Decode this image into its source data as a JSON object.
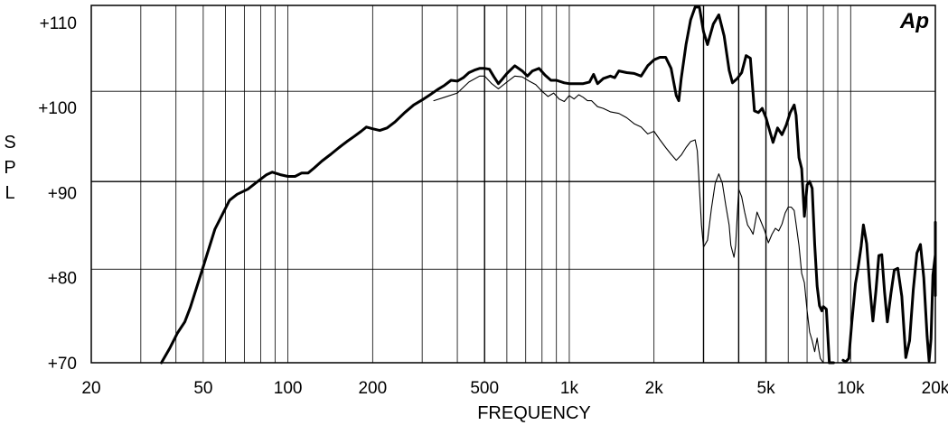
{
  "chart_data": {
    "type": "line",
    "title": "",
    "xlabel": "FREQUENCY",
    "ylabel": "S P L",
    "x_scale": "log",
    "xlim": [
      20,
      20000
    ],
    "ylim": [
      70,
      112
    ],
    "grid": true,
    "logo": "Ap",
    "x_ticks": [
      {
        "value": 20,
        "label": "20"
      },
      {
        "value": 50,
        "label": "50"
      },
      {
        "value": 100,
        "label": "100"
      },
      {
        "value": 200,
        "label": "200"
      },
      {
        "value": 500,
        "label": "500"
      },
      {
        "value": 1000,
        "label": "1k"
      },
      {
        "value": 2000,
        "label": "2k"
      },
      {
        "value": 5000,
        "label": "5k"
      },
      {
        "value": 10000,
        "label": "10k"
      },
      {
        "value": 20000,
        "label": "20k"
      }
    ],
    "y_ticks": [
      {
        "value": 70,
        "label": "+70"
      },
      {
        "value": 80,
        "label": "+80"
      },
      {
        "value": 90,
        "label": "+90"
      },
      {
        "value": 100,
        "label": "+100"
      },
      {
        "value": 110,
        "label": "+110"
      }
    ],
    "h_lines": [
      81,
      91.3,
      101.9
    ],
    "bold_v_lines": [
      500,
      3000,
      4000,
      5000
    ],
    "series": [
      {
        "style": "thick",
        "points": [
          [
            35.5,
            70
          ],
          [
            38,
            71.7
          ],
          [
            40.5,
            73.5
          ],
          [
            43,
            74.8
          ],
          [
            45,
            76.5
          ],
          [
            50,
            81.3
          ],
          [
            55,
            85.7
          ],
          [
            58,
            87.2
          ],
          [
            62,
            89.1
          ],
          [
            66,
            89.8
          ],
          [
            72,
            90.4
          ],
          [
            78,
            91.3
          ],
          [
            84,
            92.1
          ],
          [
            88,
            92.4
          ],
          [
            94,
            92.1
          ],
          [
            100,
            91.9
          ],
          [
            106,
            91.9
          ],
          [
            112,
            92.3
          ],
          [
            118,
            92.3
          ],
          [
            124,
            92.9
          ],
          [
            132,
            93.7
          ],
          [
            142,
            94.5
          ],
          [
            152,
            95.3
          ],
          [
            162,
            96
          ],
          [
            172,
            96.6
          ],
          [
            182,
            97.2
          ],
          [
            190,
            97.7
          ],
          [
            200,
            97.5
          ],
          [
            212,
            97.3
          ],
          [
            225,
            97.6
          ],
          [
            240,
            98.3
          ],
          [
            260,
            99.4
          ],
          [
            280,
            100.3
          ],
          [
            300,
            100.9
          ],
          [
            320,
            101.5
          ],
          [
            340,
            102.1
          ],
          [
            360,
            102.6
          ],
          [
            380,
            103.2
          ],
          [
            400,
            103.1
          ],
          [
            420,
            103.5
          ],
          [
            440,
            104.1
          ],
          [
            460,
            104.4
          ],
          [
            480,
            104.6
          ],
          [
            500,
            104.6
          ],
          [
            520,
            104.5
          ],
          [
            540,
            103.6
          ],
          [
            560,
            102.8
          ],
          [
            580,
            103.4
          ],
          [
            600,
            104
          ],
          [
            640,
            104.9
          ],
          [
            680,
            104.3
          ],
          [
            710,
            103.7
          ],
          [
            740,
            104.3
          ],
          [
            780,
            104.6
          ],
          [
            820,
            103.8
          ],
          [
            860,
            103.2
          ],
          [
            900,
            103.2
          ],
          [
            960,
            102.9
          ],
          [
            1000,
            102.8
          ],
          [
            1060,
            102.8
          ],
          [
            1120,
            102.8
          ],
          [
            1180,
            103
          ],
          [
            1220,
            103.9
          ],
          [
            1260,
            102.8
          ],
          [
            1320,
            103.4
          ],
          [
            1400,
            103.7
          ],
          [
            1450,
            103.5
          ],
          [
            1500,
            104.3
          ],
          [
            1600,
            104.1
          ],
          [
            1700,
            104
          ],
          [
            1800,
            103.7
          ],
          [
            1900,
            104.9
          ],
          [
            2000,
            105.6
          ],
          [
            2100,
            105.9
          ],
          [
            2200,
            105.9
          ],
          [
            2300,
            104.6
          ],
          [
            2400,
            101.4
          ],
          [
            2450,
            100.8
          ],
          [
            2500,
            103.4
          ],
          [
            2600,
            107.4
          ],
          [
            2700,
            110.3
          ],
          [
            2800,
            111.8
          ],
          [
            2900,
            111.8
          ],
          [
            3000,
            108.9
          ],
          [
            3100,
            107.4
          ],
          [
            3250,
            109.8
          ],
          [
            3400,
            110.9
          ],
          [
            3550,
            108.4
          ],
          [
            3700,
            104.4
          ],
          [
            3800,
            102.9
          ],
          [
            3950,
            103.4
          ],
          [
            4100,
            104.1
          ],
          [
            4250,
            106.1
          ],
          [
            4400,
            105.8
          ],
          [
            4550,
            99.6
          ],
          [
            4700,
            99.4
          ],
          [
            4850,
            99.9
          ],
          [
            5000,
            98.8
          ],
          [
            5150,
            97.3
          ],
          [
            5300,
            95.9
          ],
          [
            5500,
            97.6
          ],
          [
            5700,
            96.8
          ],
          [
            5900,
            97.9
          ],
          [
            6100,
            99.4
          ],
          [
            6300,
            100.3
          ],
          [
            6400,
            99.1
          ],
          [
            6550,
            94.1
          ],
          [
            6700,
            92.8
          ],
          [
            6850,
            87.2
          ],
          [
            7000,
            90.9
          ],
          [
            7150,
            91.3
          ],
          [
            7300,
            90.5
          ],
          [
            7450,
            83.9
          ],
          [
            7600,
            79
          ],
          [
            7750,
            76.7
          ],
          [
            7900,
            76.1
          ],
          [
            8000,
            76.6
          ],
          [
            8200,
            76.3
          ],
          [
            8400,
            70
          ],
          [
            8700,
            69.5
          ]
        ]
      },
      {
        "style": "thin",
        "points": [
          [
            330,
            100.8
          ],
          [
            360,
            101.2
          ],
          [
            400,
            101.7
          ],
          [
            440,
            103
          ],
          [
            480,
            103.7
          ],
          [
            500,
            103.7
          ],
          [
            530,
            102.8
          ],
          [
            560,
            102.2
          ],
          [
            600,
            103
          ],
          [
            640,
            103.7
          ],
          [
            680,
            103.6
          ],
          [
            720,
            103.1
          ],
          [
            760,
            102.7
          ],
          [
            800,
            101.9
          ],
          [
            840,
            101.3
          ],
          [
            880,
            101.7
          ],
          [
            920,
            101
          ],
          [
            960,
            100.7
          ],
          [
            1000,
            101.4
          ],
          [
            1040,
            101
          ],
          [
            1080,
            101.5
          ],
          [
            1120,
            101.2
          ],
          [
            1160,
            100.8
          ],
          [
            1200,
            100.8
          ],
          [
            1260,
            100.1
          ],
          [
            1320,
            99.9
          ],
          [
            1400,
            99.5
          ],
          [
            1500,
            99.3
          ],
          [
            1600,
            98.8
          ],
          [
            1700,
            98.1
          ],
          [
            1800,
            97.7
          ],
          [
            1900,
            96.9
          ],
          [
            2000,
            97.2
          ],
          [
            2100,
            96.2
          ],
          [
            2200,
            95.3
          ],
          [
            2300,
            94.5
          ],
          [
            2400,
            93.8
          ],
          [
            2500,
            94.4
          ],
          [
            2600,
            95.3
          ],
          [
            2700,
            96
          ],
          [
            2800,
            96.2
          ],
          [
            2850,
            94.9
          ],
          [
            2900,
            90.6
          ],
          [
            2950,
            86.2
          ],
          [
            3000,
            83.6
          ],
          [
            3100,
            84.4
          ],
          [
            3200,
            88.1
          ],
          [
            3300,
            91.1
          ],
          [
            3400,
            92.2
          ],
          [
            3500,
            91.1
          ],
          [
            3600,
            88.5
          ],
          [
            3700,
            86.2
          ],
          [
            3750,
            83.8
          ],
          [
            3850,
            82.4
          ],
          [
            3900,
            83.8
          ],
          [
            4000,
            90.4
          ],
          [
            4100,
            89.5
          ],
          [
            4200,
            87.7
          ],
          [
            4300,
            86.2
          ],
          [
            4400,
            85.7
          ],
          [
            4500,
            85.1
          ],
          [
            4650,
            87.7
          ],
          [
            4800,
            86.6
          ],
          [
            4950,
            85.5
          ],
          [
            5100,
            84.1
          ],
          [
            5250,
            85.1
          ],
          [
            5400,
            85.8
          ],
          [
            5550,
            85.5
          ],
          [
            5700,
            86.3
          ],
          [
            5850,
            87.6
          ],
          [
            6000,
            88.3
          ],
          [
            6150,
            88.3
          ],
          [
            6300,
            87.9
          ],
          [
            6400,
            86.3
          ],
          [
            6550,
            83.8
          ],
          [
            6700,
            80.5
          ],
          [
            6850,
            79.4
          ],
          [
            7000,
            76.1
          ],
          [
            7150,
            73.6
          ],
          [
            7300,
            72.6
          ],
          [
            7450,
            71.3
          ],
          [
            7600,
            72.9
          ],
          [
            7700,
            71.6
          ],
          [
            7800,
            70.5
          ],
          [
            8000,
            70
          ]
        ]
      },
      {
        "style": "thick",
        "points": [
          [
            9400,
            70.3
          ],
          [
            9600,
            70.1
          ],
          [
            9850,
            70.5
          ],
          [
            10100,
            74.8
          ],
          [
            10400,
            79.3
          ],
          [
            10600,
            80.9
          ],
          [
            10900,
            83.7
          ],
          [
            11100,
            86.2
          ],
          [
            11400,
            84
          ],
          [
            11700,
            78.9
          ],
          [
            12000,
            74.9
          ],
          [
            12300,
            78.5
          ],
          [
            12600,
            82.6
          ],
          [
            12900,
            82.7
          ],
          [
            13200,
            78.3
          ],
          [
            13500,
            74.8
          ],
          [
            13900,
            78.1
          ],
          [
            14300,
            80.9
          ],
          [
            14700,
            81.1
          ],
          [
            15200,
            77.8
          ],
          [
            15700,
            70.6
          ],
          [
            16200,
            72.6
          ],
          [
            16700,
            78.6
          ],
          [
            17200,
            82.9
          ],
          [
            17700,
            83.9
          ],
          [
            18200,
            80
          ],
          [
            18700,
            73.1
          ],
          [
            19000,
            70.2
          ],
          [
            19300,
            72.8
          ],
          [
            19600,
            80.3
          ],
          [
            20000,
            82.7
          ],
          [
            20500,
            85.7
          ],
          [
            21000,
            86.5
          ],
          [
            21300,
            83.6
          ],
          [
            21600,
            77.9
          ]
        ]
      }
    ]
  }
}
